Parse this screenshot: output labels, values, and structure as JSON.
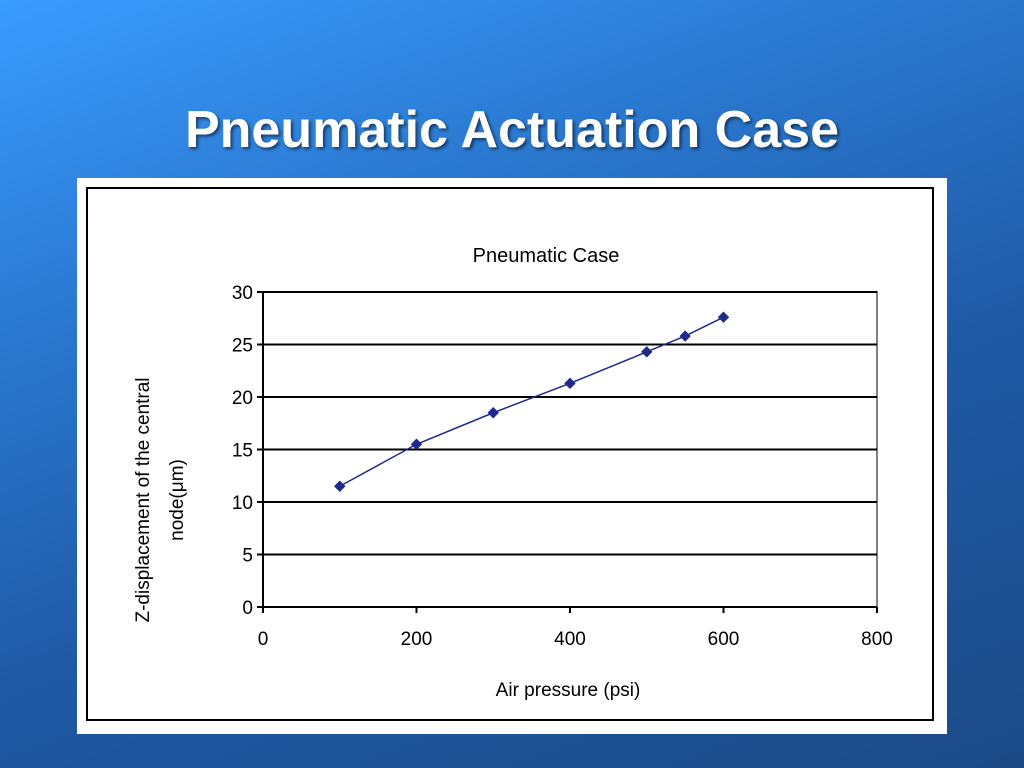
{
  "slide": {
    "title": "Pneumatic Actuation Case"
  },
  "chart_data": {
    "type": "line",
    "title": "Pneumatic Case",
    "xlabel": "Air pressure (psi)",
    "ylabel_lines": [
      "Z-displacement of the central",
      "node(μm)"
    ],
    "xlim": [
      0,
      800
    ],
    "ylim": [
      0,
      30
    ],
    "x_ticks": [
      0,
      200,
      400,
      600,
      800
    ],
    "y_ticks": [
      0,
      5,
      10,
      15,
      20,
      25,
      30
    ],
    "grid": "horizontal",
    "series": [
      {
        "color": "#1f2a8c",
        "marker": "diamond",
        "x": [
          100,
          200,
          300,
          400,
          500,
          550,
          600
        ],
        "y": [
          11.5,
          15.5,
          18.5,
          21.3,
          24.3,
          25.8,
          27.6
        ]
      }
    ]
  }
}
